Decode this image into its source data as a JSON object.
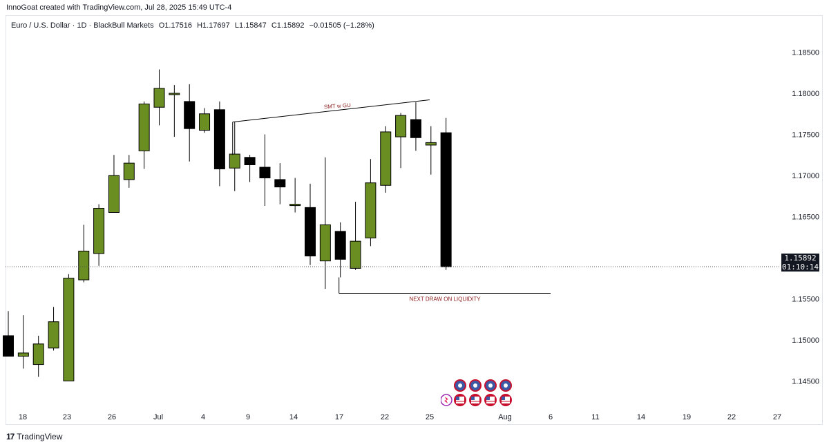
{
  "caption": "InnoGoat created with TradingView.com, Jul 28, 2025 15:49 UTC-4",
  "symbol": {
    "name": "Euro / U.S. Dollar · 1D · BlackBull Markets",
    "open": "O1.17516",
    "high": "H1.17697",
    "low": "L1.15847",
    "close": "C1.15892",
    "change": "−0.01505 (−1.28%)"
  },
  "last_price": {
    "value": "1.15892",
    "countdown": "01:10:14"
  },
  "brand": "TradingView",
  "colors": {
    "bull": "#6b8e23",
    "bear": "#000000",
    "annotation": "#8b1a1a"
  },
  "chart_data": {
    "type": "candlestick",
    "ylim": [
      1.1415,
      1.1895
    ],
    "y_ticks": [
      "1.18500",
      "1.18000",
      "1.17500",
      "1.17000",
      "1.16500",
      "1.16000",
      "1.15500",
      "1.15000",
      "1.14500"
    ],
    "x_ticks": [
      "18",
      "23",
      "26",
      "Jul",
      "4",
      "9",
      "14",
      "17",
      "22",
      "25",
      "Aug",
      "6",
      "11",
      "14",
      "19",
      "22",
      "27"
    ],
    "candles": [
      {
        "o": 1.1505,
        "h": 1.1535,
        "l": 1.148,
        "c": 1.148
      },
      {
        "o": 1.148,
        "h": 1.153,
        "l": 1.1465,
        "c": 1.1484
      },
      {
        "o": 1.147,
        "h": 1.1505,
        "l": 1.1455,
        "c": 1.1495
      },
      {
        "o": 1.149,
        "h": 1.154,
        "l": 1.1487,
        "c": 1.1522
      },
      {
        "o": 1.145,
        "h": 1.158,
        "l": 1.145,
        "c": 1.1575
      },
      {
        "o": 1.1573,
        "h": 1.164,
        "l": 1.157,
        "c": 1.1608
      },
      {
        "o": 1.1605,
        "h": 1.1665,
        "l": 1.159,
        "c": 1.166
      },
      {
        "o": 1.1655,
        "h": 1.1725,
        "l": 1.1655,
        "c": 1.17
      },
      {
        "o": 1.1695,
        "h": 1.1725,
        "l": 1.1685,
        "c": 1.1715
      },
      {
        "o": 1.173,
        "h": 1.179,
        "l": 1.1708,
        "c": 1.1787
      },
      {
        "o": 1.1783,
        "h": 1.1829,
        "l": 1.1761,
        "c": 1.1806
      },
      {
        "o": 1.18,
        "h": 1.181,
        "l": 1.1747,
        "c": 1.18
      },
      {
        "o": 1.179,
        "h": 1.1811,
        "l": 1.1717,
        "c": 1.1757
      },
      {
        "o": 1.1755,
        "h": 1.1782,
        "l": 1.1752,
        "c": 1.1775
      },
      {
        "o": 1.178,
        "h": 1.179,
        "l": 1.1687,
        "c": 1.1708
      },
      {
        "o": 1.1709,
        "h": 1.1765,
        "l": 1.1681,
        "c": 1.1726
      },
      {
        "o": 1.1722,
        "h": 1.1725,
        "l": 1.1692,
        "c": 1.1713
      },
      {
        "o": 1.171,
        "h": 1.175,
        "l": 1.1663,
        "c": 1.1697
      },
      {
        "o": 1.1695,
        "h": 1.1715,
        "l": 1.1665,
        "c": 1.1686
      },
      {
        "o": 1.1665,
        "h": 1.1697,
        "l": 1.1655,
        "c": 1.1665
      },
      {
        "o": 1.1661,
        "h": 1.169,
        "l": 1.1591,
        "c": 1.1602
      },
      {
        "o": 1.1596,
        "h": 1.1722,
        "l": 1.1562,
        "c": 1.164
      },
      {
        "o": 1.1632,
        "h": 1.1643,
        "l": 1.1576,
        "c": 1.1598
      },
      {
        "o": 1.1587,
        "h": 1.1668,
        "l": 1.1585,
        "c": 1.162
      },
      {
        "o": 1.1624,
        "h": 1.172,
        "l": 1.1614,
        "c": 1.1691
      },
      {
        "o": 1.1688,
        "h": 1.176,
        "l": 1.1679,
        "c": 1.1753
      },
      {
        "o": 1.1747,
        "h": 1.1776,
        "l": 1.1709,
        "c": 1.1773
      },
      {
        "o": 1.1768,
        "h": 1.1789,
        "l": 1.173,
        "c": 1.1746
      },
      {
        "o": 1.1737,
        "h": 1.176,
        "l": 1.1701,
        "c": 1.174
      },
      {
        "o": 1.1752,
        "h": 1.177,
        "l": 1.1585,
        "c": 1.1589
      }
    ],
    "annotations": [
      {
        "text": "SMT w GU"
      },
      {
        "text": "NEXT DRAW ON LIQUIDITY"
      }
    ]
  }
}
